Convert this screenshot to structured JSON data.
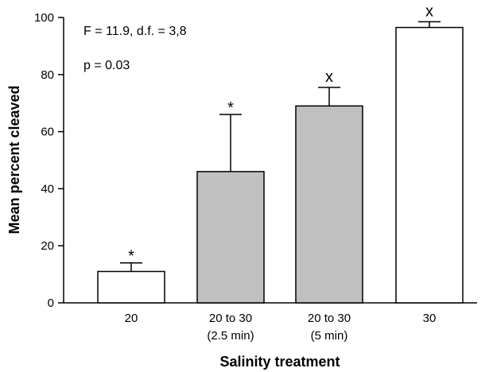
{
  "chart_data": {
    "type": "bar",
    "title": "",
    "xlabel": "Salinity treatment",
    "ylabel": "Mean percent cleaved",
    "ylim": [
      0,
      100
    ],
    "yticks": [
      0,
      20,
      40,
      60,
      80,
      100
    ],
    "categories": [
      {
        "line1": "20",
        "line2": ""
      },
      {
        "line1": "20 to 30",
        "line2": "(2.5 min)"
      },
      {
        "line1": "20 to 30",
        "line2": "(5 min)"
      },
      {
        "line1": "30",
        "line2": ""
      }
    ],
    "values": [
      11,
      46,
      69,
      96.5
    ],
    "error_upper": [
      14,
      66,
      75.5,
      98.5
    ],
    "bar_colors": [
      "#ffffff",
      "#c0c0c0",
      "#c0c0c0",
      "#ffffff"
    ],
    "significance": [
      "*",
      "*",
      "x",
      "x"
    ],
    "annotations": [
      "F = 11.9, d.f. = 3,8",
      "p = 0.03"
    ],
    "grid": false,
    "legend": "none"
  }
}
